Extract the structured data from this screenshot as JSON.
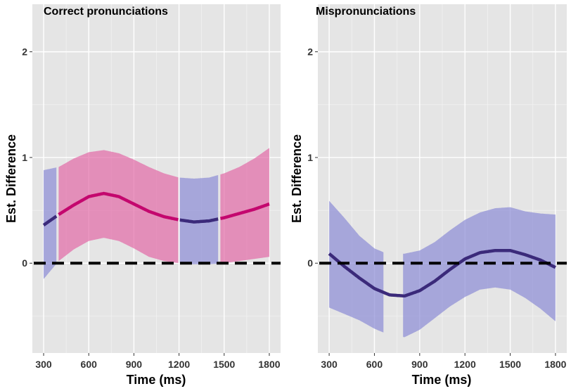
{
  "chart_data": [
    {
      "type": "line",
      "title": "Correct pronunciations",
      "xlabel": "Time (ms)",
      "ylabel": "Est. Difference",
      "xlim": [
        225,
        1875
      ],
      "ylim": [
        -0.85,
        2.45
      ],
      "xticks": [
        300,
        600,
        900,
        1200,
        1500,
        1800
      ],
      "yticks": [
        0,
        1,
        2
      ],
      "xticklabels": [
        "300",
        "600",
        "900",
        "1200",
        "1500",
        "1800"
      ],
      "yticklabels": [
        "0",
        "1",
        "2"
      ],
      "grid": true,
      "reference_line": 0,
      "series": [
        {
          "x": [
            300,
            400,
            500,
            600,
            700,
            800,
            900,
            1000,
            1100,
            1200,
            1300,
            1400,
            1500,
            1600,
            1700,
            1800
          ],
          "y": [
            0.36,
            0.46,
            0.55,
            0.63,
            0.66,
            0.63,
            0.56,
            0.49,
            0.44,
            0.41,
            0.39,
            0.4,
            0.43,
            0.47,
            0.51,
            0.56
          ],
          "lower": [
            -0.15,
            0.02,
            0.13,
            0.21,
            0.24,
            0.21,
            0.14,
            0.06,
            0.02,
            0.0,
            -0.01,
            -0.01,
            0.0,
            0.02,
            0.04,
            0.06
          ],
          "upper": [
            0.88,
            0.91,
            0.99,
            1.05,
            1.07,
            1.04,
            0.98,
            0.91,
            0.85,
            0.81,
            0.8,
            0.81,
            0.85,
            0.91,
            0.99,
            1.09
          ]
        }
      ],
      "segments": [
        {
          "start": 300,
          "end": 385,
          "significant": false,
          "color": "#3b2a7a",
          "band_color": "#8b8bd6"
        },
        {
          "start": 400,
          "end": 1195,
          "significant": true,
          "color": "#c4076e",
          "band_color": "#e36aa6"
        },
        {
          "start": 1205,
          "end": 1460,
          "significant": false,
          "color": "#3b2a7a",
          "band_color": "#8b8bd6"
        },
        {
          "start": 1475,
          "end": 1800,
          "significant": true,
          "color": "#c4076e",
          "band_color": "#e36aa6"
        }
      ]
    },
    {
      "type": "line",
      "title": "Mispronunciations",
      "xlabel": "Time (ms)",
      "ylabel": "Est. Difference",
      "xlim": [
        225,
        1875
      ],
      "ylim": [
        -0.85,
        2.45
      ],
      "xticks": [
        300,
        600,
        900,
        1200,
        1500,
        1800
      ],
      "yticks": [
        0,
        1,
        2
      ],
      "xticklabels": [
        "300",
        "600",
        "900",
        "1200",
        "1500",
        "1800"
      ],
      "yticklabels": [
        "0",
        "1",
        "2"
      ],
      "grid": true,
      "reference_line": 0,
      "series": [
        {
          "x": [
            300,
            400,
            500,
            600,
            700,
            800,
            900,
            1000,
            1100,
            1200,
            1300,
            1400,
            1500,
            1600,
            1700,
            1800
          ],
          "y": [
            0.09,
            -0.03,
            -0.14,
            -0.24,
            -0.3,
            -0.31,
            -0.26,
            -0.17,
            -0.06,
            0.04,
            0.1,
            0.12,
            0.12,
            0.08,
            0.03,
            -0.04
          ],
          "lower": [
            -0.42,
            -0.48,
            -0.54,
            -0.62,
            -0.68,
            -0.7,
            -0.63,
            -0.52,
            -0.41,
            -0.32,
            -0.25,
            -0.23,
            -0.25,
            -0.33,
            -0.43,
            -0.55
          ],
          "upper": [
            0.59,
            0.43,
            0.26,
            0.14,
            0.08,
            0.09,
            0.12,
            0.2,
            0.31,
            0.41,
            0.48,
            0.52,
            0.53,
            0.49,
            0.47,
            0.46
          ]
        }
      ],
      "segments": [
        {
          "start": 300,
          "end": 660,
          "significant": false,
          "color": "#3b2a7a",
          "band_color": "#8b8bd6"
        },
        {
          "start": 790,
          "end": 1800,
          "significant": false,
          "color": "#3b2a7a",
          "band_color": "#8b8bd6"
        }
      ],
      "line_segments": [
        {
          "start": 300,
          "end": 1800,
          "color": "#3b2a7a"
        }
      ]
    }
  ]
}
